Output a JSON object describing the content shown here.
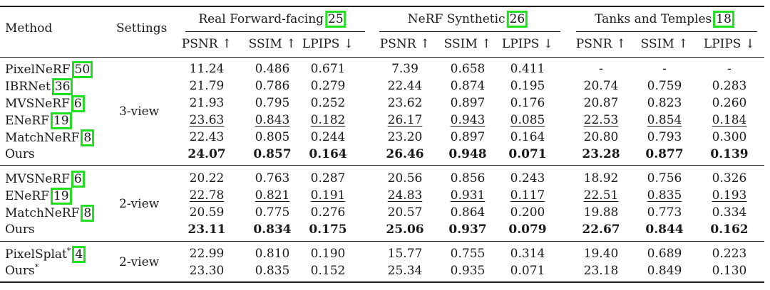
{
  "header": {
    "method": "Method",
    "settings": "Settings",
    "groups": [
      {
        "label": "Real Forward-facing",
        "cite": "25"
      },
      {
        "label": "NeRF Synthetic",
        "cite": "26"
      },
      {
        "label": "Tanks and Temples",
        "cite": "18"
      }
    ],
    "metrics": [
      "PSNR ↑",
      "SSIM ↑",
      "LPIPS ↓",
      "PSNR ↑",
      "SSIM ↑",
      "LPIPS ↓",
      "PSNR ↑",
      "SSIM ↑",
      "LPIPS ↓"
    ]
  },
  "sections": [
    {
      "setting": "3-view",
      "rows": [
        {
          "method": "PixelNeRF",
          "cite": "50",
          "sup": "",
          "values": [
            "11.24",
            "0.486",
            "0.671",
            "7.39",
            "0.658",
            "0.411",
            "-",
            "-",
            "-"
          ],
          "style": "n"
        },
        {
          "method": "IBRNet",
          "cite": "36",
          "sup": "",
          "values": [
            "21.79",
            "0.786",
            "0.279",
            "22.44",
            "0.874",
            "0.195",
            "20.74",
            "0.759",
            "0.283"
          ],
          "style": "n"
        },
        {
          "method": "MVSNeRF",
          "cite": "6",
          "sup": "",
          "values": [
            "21.93",
            "0.795",
            "0.252",
            "23.62",
            "0.897",
            "0.176",
            "20.87",
            "0.823",
            "0.260"
          ],
          "style": "n"
        },
        {
          "method": "ENeRF",
          "cite": "19",
          "sup": "",
          "values": [
            "23.63",
            "0.843",
            "0.182",
            "26.17",
            "0.943",
            "0.085",
            "22.53",
            "0.854",
            "0.184"
          ],
          "style": "u"
        },
        {
          "method": "MatchNeRF",
          "cite": "8",
          "sup": "",
          "values": [
            "22.43",
            "0.805",
            "0.244",
            "23.20",
            "0.897",
            "0.164",
            "20.80",
            "0.793",
            "0.300"
          ],
          "style": "n"
        },
        {
          "method": "Ours",
          "cite": "",
          "sup": "",
          "values": [
            "24.07",
            "0.857",
            "0.164",
            "26.46",
            "0.948",
            "0.071",
            "23.28",
            "0.877",
            "0.139"
          ],
          "style": "b"
        }
      ]
    },
    {
      "setting": "2-view",
      "rows": [
        {
          "method": "MVSNeRF",
          "cite": "6",
          "sup": "",
          "values": [
            "20.22",
            "0.763",
            "0.287",
            "20.56",
            "0.856",
            "0.243",
            "18.92",
            "0.756",
            "0.326"
          ],
          "style": "n"
        },
        {
          "method": "ENeRF",
          "cite": "19",
          "sup": "",
          "values": [
            "22.78",
            "0.821",
            "0.191",
            "24.83",
            "0.931",
            "0.117",
            "22.51",
            "0.835",
            "0.193"
          ],
          "style": "u"
        },
        {
          "method": "MatchNeRF",
          "cite": "8",
          "sup": "",
          "values": [
            "20.59",
            "0.775",
            "0.276",
            "20.57",
            "0.864",
            "0.200",
            "19.88",
            "0.773",
            "0.334"
          ],
          "style": "n"
        },
        {
          "method": "Ours",
          "cite": "",
          "sup": "",
          "values": [
            "23.11",
            "0.834",
            "0.175",
            "25.06",
            "0.937",
            "0.079",
            "22.67",
            "0.844",
            "0.162"
          ],
          "style": "b"
        }
      ]
    },
    {
      "setting": "2-view",
      "rows": [
        {
          "method": "PixelSplat",
          "cite": "4",
          "sup": "*",
          "values": [
            "22.99",
            "0.810",
            "0.190",
            "15.77",
            "0.755",
            "0.314",
            "19.40",
            "0.689",
            "0.223"
          ],
          "style": "n"
        },
        {
          "method": "Ours",
          "cite": "",
          "sup": "*",
          "values": [
            "23.30",
            "0.835",
            "0.152",
            "25.34",
            "0.935",
            "0.071",
            "23.18",
            "0.849",
            "0.130"
          ],
          "style": "n"
        }
      ]
    }
  ]
}
